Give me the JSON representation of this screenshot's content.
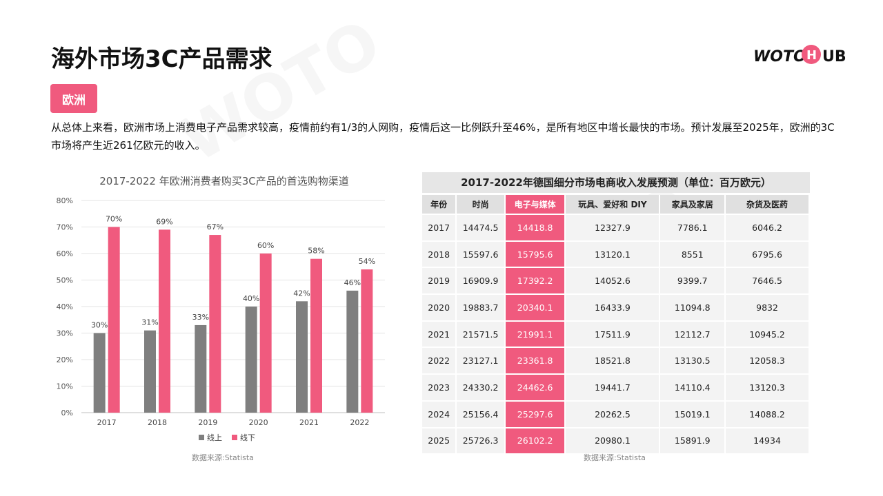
{
  "page": {
    "title": "海外市场3C产品需求",
    "tag": "欧洲",
    "paragraph": "从总体上来看，欧洲市场上消费电子产品需求较高，疫情前约有1/3的人网购，疫情后这一比例跃升至46%，是所有地区中增长最快的市场。预计发展至2025年，欧洲的3C市场将产生近261亿欧元的收入。",
    "logo": "WOTO HUB",
    "brand_color": "#f05a7e"
  },
  "chart_data": [
    {
      "type": "bar",
      "title": "2017-2022 年欧洲消费者购买3C产品的首选购物渠道",
      "categories": [
        "2017",
        "2018",
        "2019",
        "2020",
        "2021",
        "2022"
      ],
      "series": [
        {
          "name": "线上",
          "color": "#7f7f7f",
          "values": [
            30,
            31,
            33,
            40,
            42,
            46
          ]
        },
        {
          "name": "线下",
          "color": "#f05a7e",
          "values": [
            70,
            69,
            67,
            60,
            58,
            54
          ]
        }
      ],
      "ylim": [
        0,
        80
      ],
      "yticks": [
        "0%",
        "10%",
        "20%",
        "30%",
        "40%",
        "50%",
        "60%",
        "70%",
        "80%"
      ],
      "value_suffix": "%",
      "grid": true,
      "legend": "bottom",
      "source": "数据来源:Statista"
    },
    {
      "type": "table",
      "title": "2017-2022年德国细分市场电商收入发展预测（单位：百万欧元）",
      "columns": [
        "年份",
        "时尚",
        "电子与媒体",
        "玩具、爱好和 DIY",
        "家具及家居",
        "杂货及医药"
      ],
      "highlight_column": "电子与媒体",
      "rows": [
        [
          "2017",
          "14474.5",
          "14418.8",
          "12327.9",
          "7786.1",
          "6046.2"
        ],
        [
          "2018",
          "15597.6",
          "15795.6",
          "13120.1",
          "8551",
          "6795.6"
        ],
        [
          "2019",
          "16909.9",
          "17392.2",
          "14052.6",
          "9399.7",
          "7646.5"
        ],
        [
          "2020",
          "19883.7",
          "20340.1",
          "16433.9",
          "11094.8",
          "9832"
        ],
        [
          "2021",
          "21571.5",
          "21991.1",
          "17511.9",
          "12112.7",
          "10945.2"
        ],
        [
          "2022",
          "23127.1",
          "23361.8",
          "18521.8",
          "13130.5",
          "12058.3"
        ],
        [
          "2023",
          "24330.2",
          "24462.6",
          "19441.7",
          "14110.4",
          "13120.3"
        ],
        [
          "2024",
          "25156.4",
          "25297.6",
          "20262.5",
          "15019.1",
          "14088.2"
        ],
        [
          "2025",
          "25726.3",
          "26102.2",
          "20980.1",
          "15891.9",
          "14934"
        ]
      ],
      "source": "数据来源:Statista"
    }
  ]
}
